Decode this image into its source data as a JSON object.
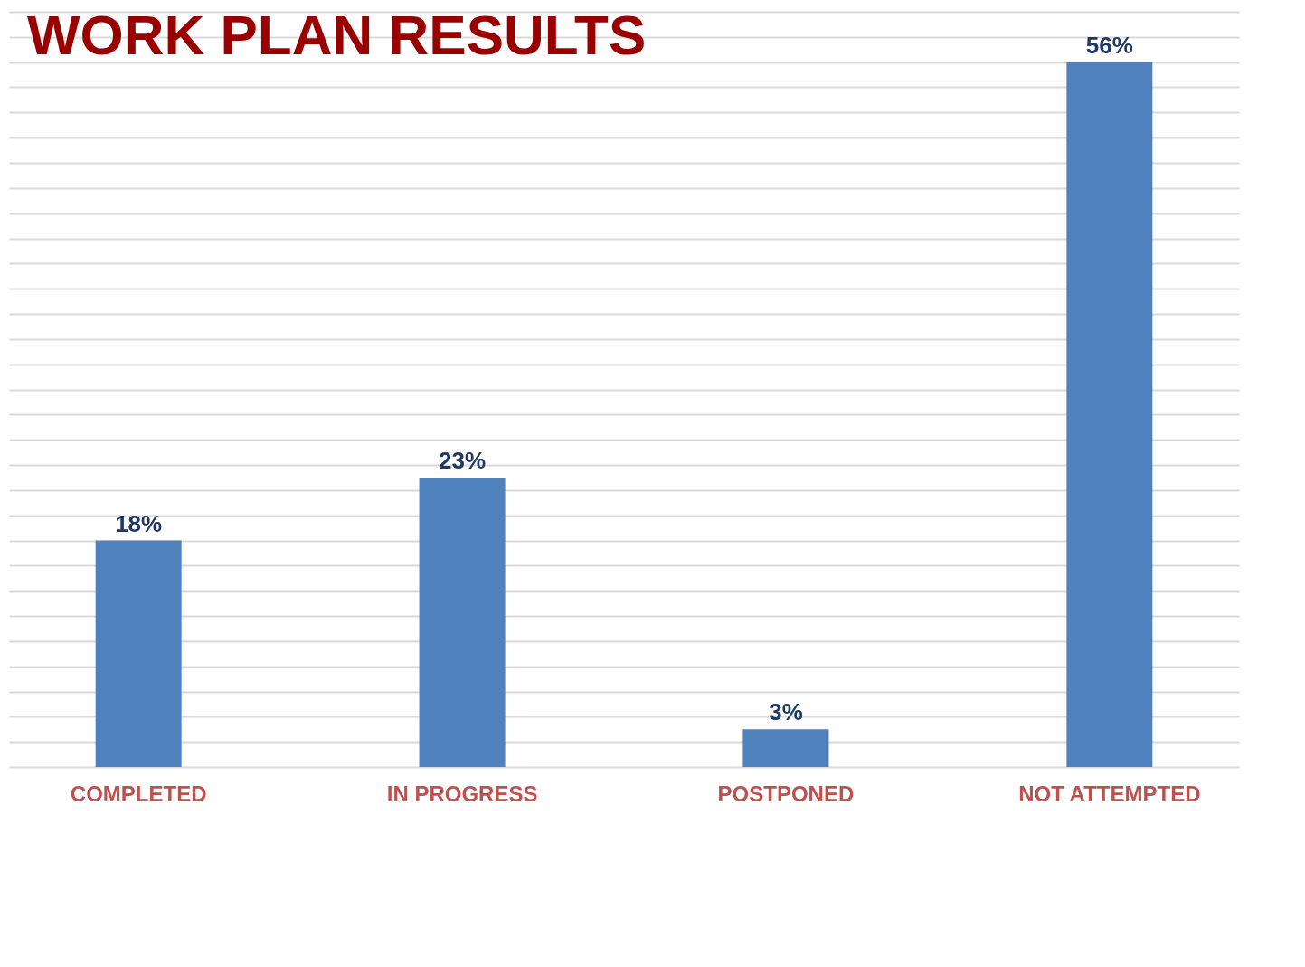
{
  "chart_data": {
    "type": "bar",
    "title": "WORK PLAN RESULTS",
    "categories": [
      "COMPLETED",
      "IN PROGRESS",
      "POSTPONED",
      "NOT ATTEMPTED"
    ],
    "values": [
      18,
      23,
      3,
      56
    ],
    "color": "#4f81bd",
    "value_labels": [
      "18%",
      "23%",
      "3%",
      "56%"
    ],
    "grid": "y",
    "tick_labels": "x"
  }
}
